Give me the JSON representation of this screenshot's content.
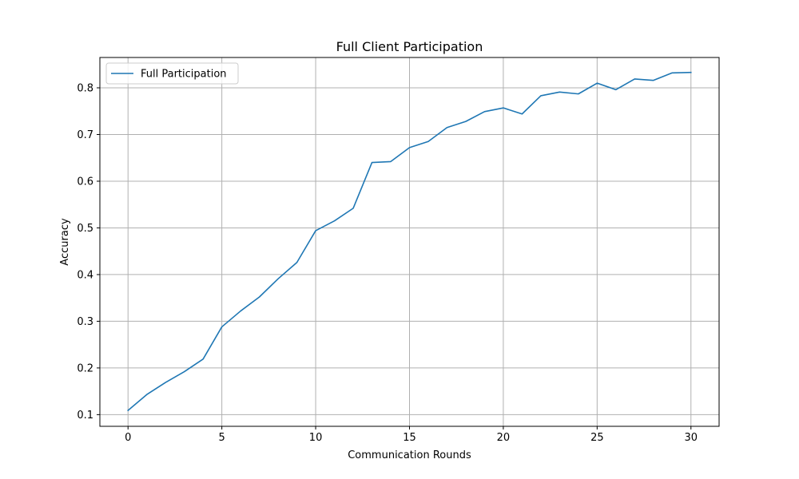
{
  "chart_data": {
    "type": "line",
    "title": "Full Client Participation",
    "xlabel": "Communication Rounds",
    "ylabel": "Accuracy",
    "xlim": [
      -1.5,
      31.5
    ],
    "ylim": [
      0.075,
      0.865
    ],
    "xticks": [
      0,
      5,
      10,
      15,
      20,
      25,
      30
    ],
    "xtick_labels": [
      "0",
      "5",
      "10",
      "15",
      "20",
      "25",
      "30"
    ],
    "yticks": [
      0.1,
      0.2,
      0.3,
      0.4,
      0.5,
      0.6,
      0.7,
      0.8
    ],
    "ytick_labels": [
      "0.1",
      "0.2",
      "0.3",
      "0.4",
      "0.5",
      "0.6",
      "0.7",
      "0.8"
    ],
    "grid": true,
    "legend_position": "upper-left",
    "series": [
      {
        "name": "Full Participation",
        "color": "#1f77b4",
        "x": [
          0,
          1,
          2,
          3,
          4,
          5,
          6,
          7,
          8,
          9,
          10,
          11,
          12,
          13,
          14,
          15,
          16,
          17,
          18,
          19,
          20,
          21,
          22,
          23,
          24,
          25,
          26,
          27,
          28,
          29,
          30
        ],
        "values": [
          0.109,
          0.143,
          0.169,
          0.192,
          0.219,
          0.288,
          0.322,
          0.352,
          0.391,
          0.426,
          0.494,
          0.515,
          0.542,
          0.64,
          0.642,
          0.672,
          0.685,
          0.715,
          0.728,
          0.749,
          0.757,
          0.744,
          0.783,
          0.791,
          0.787,
          0.81,
          0.796,
          0.819,
          0.816,
          0.832,
          0.833
        ]
      }
    ]
  }
}
